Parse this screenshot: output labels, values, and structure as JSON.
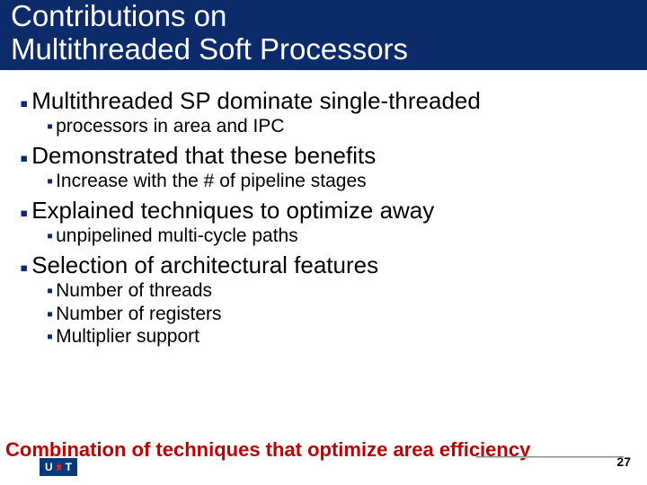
{
  "colors": {
    "band_bg": "#0b2b6a",
    "band_text": "#ffffff",
    "bullet": "#0b2b6a",
    "body_text": "#000000",
    "footer_text": "#c00000",
    "logo_bg": "#003a7a",
    "logo_leaf": "#d22"
  },
  "typography": {
    "title_fontsize_pt": 25,
    "lvl1_fontsize_pt": 20,
    "lvl2_fontsize_pt": 16,
    "footer_fontsize_pt": 17,
    "pagenum_fontsize_pt": 11
  },
  "title": {
    "line1": "Contributions on",
    "line2": "Multithreaded Soft Processors"
  },
  "bullets": [
    {
      "text": "Multithreaded SP dominate single-threaded",
      "sub": [
        {
          "text": "processors in area and IPC"
        }
      ]
    },
    {
      "text": "Demonstrated that these benefits",
      "sub": [
        {
          "text": "Increase with the # of pipeline stages"
        }
      ]
    },
    {
      "text": "Explained techniques to optimize away",
      "sub": [
        {
          "text": "unpipelined multi-cycle paths"
        }
      ]
    },
    {
      "text": "Selection of architectural features",
      "sub": [
        {
          "text": "Number of threads"
        },
        {
          "text": "Number of registers"
        },
        {
          "text": "Multiplier support"
        }
      ]
    }
  ],
  "footer": "Combination of techniques that optimize area efficiency",
  "logo": {
    "left": "U",
    "right": "T"
  },
  "page_number": "27"
}
